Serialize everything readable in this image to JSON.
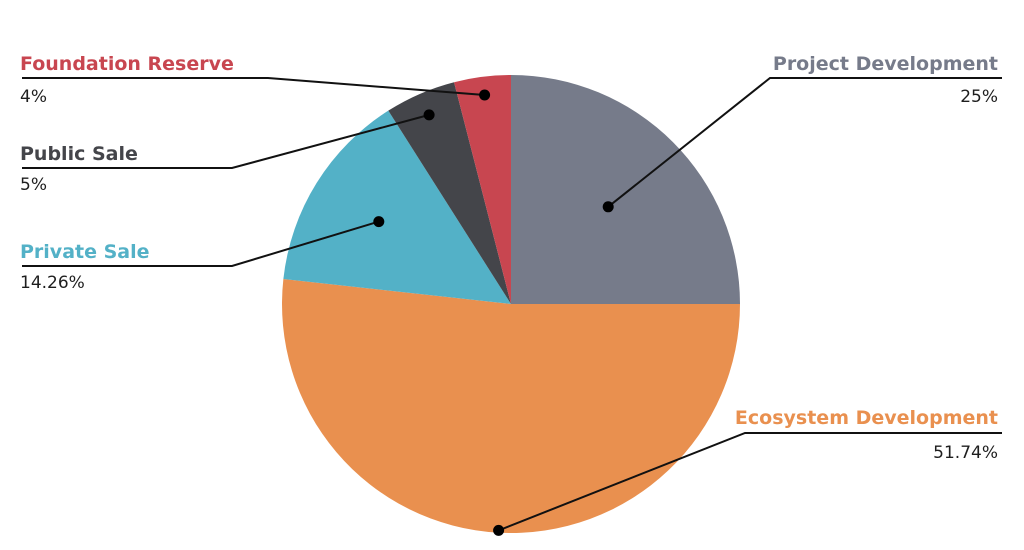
{
  "chart_data": {
    "type": "pie",
    "title": "",
    "slices": [
      {
        "label": "Project Development",
        "value": 25,
        "value_text": "25%",
        "color": "#767b8a"
      },
      {
        "label": "Ecosystem Development",
        "value": 51.74,
        "value_text": "51.74%",
        "color": "#e9904f"
      },
      {
        "label": "Private Sale",
        "value": 14.26,
        "value_text": "14.26%",
        "color": "#53b1c7"
      },
      {
        "label": "Public Sale",
        "value": 5,
        "value_text": "5%",
        "color": "#44454a"
      },
      {
        "label": "Foundation Reserve",
        "value": 4,
        "value_text": "4%",
        "color": "#c84650"
      }
    ],
    "start_angle": "12 o'clock",
    "direction": "clockwise",
    "legend": "callout labels with leader lines"
  }
}
